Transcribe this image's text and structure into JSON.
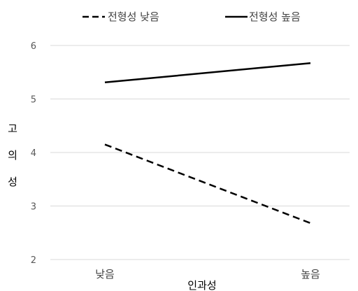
{
  "chart_data": {
    "type": "line",
    "categories": [
      "낮음",
      "높음"
    ],
    "series": [
      {
        "name": "전형성 낮음",
        "values": [
          4.15,
          2.68
        ],
        "style": "dashed",
        "color": "#000000"
      },
      {
        "name": "전형성 높음",
        "values": [
          5.31,
          5.67
        ],
        "style": "solid",
        "color": "#000000"
      }
    ],
    "xlabel": "인과성",
    "ylabel": "고의성",
    "yticks": [
      2,
      3,
      4,
      5,
      6
    ],
    "ylim": [
      2,
      6
    ],
    "grid": true,
    "legend_position": "top"
  },
  "colors": {
    "grid": "#d9d9d9",
    "line": "#000000",
    "tick_text": "#595959"
  }
}
